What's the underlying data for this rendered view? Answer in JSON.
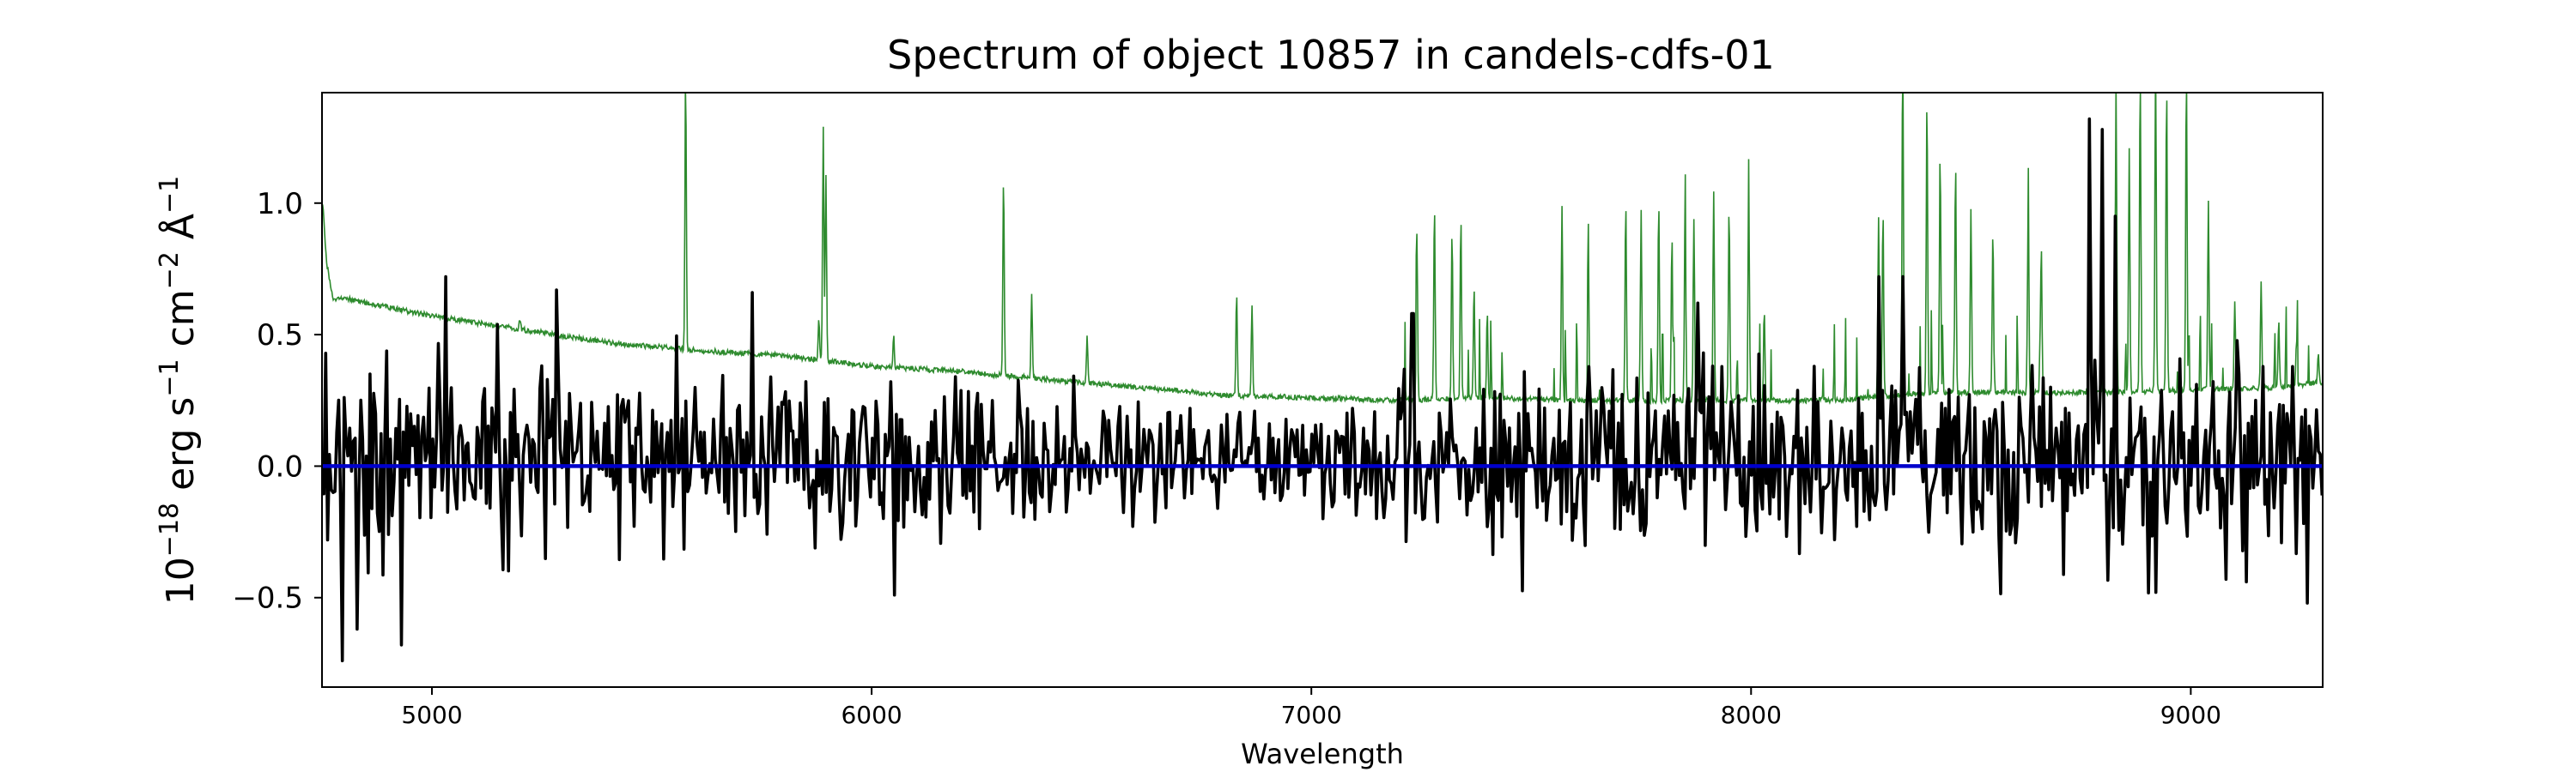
{
  "chart_data": {
    "type": "line",
    "title": "Spectrum of object 10857 in candels-cdfs-01",
    "xlabel": "Wavelength",
    "ylabel": "10−18 erg s−1 cm−2 Å−1",
    "ylabel_parts": {
      "base": "10",
      "e1": "−18",
      "t1": " erg s",
      "e2": "−1",
      "t2": " cm",
      "e3": "−2",
      "t3": " Å",
      "e4": "−1"
    },
    "xlim": [
      4750,
      9300
    ],
    "ylim": [
      -0.84,
      1.42
    ],
    "x_ticks": [
      5000,
      6000,
      7000,
      8000,
      9000
    ],
    "x_tick_labels": [
      "5000",
      "6000",
      "7000",
      "8000",
      "9000"
    ],
    "y_ticks": [
      -0.5,
      0.0,
      0.5,
      1.0
    ],
    "y_tick_labels": [
      "−0.5",
      "0.0",
      "0.5",
      "1.0"
    ],
    "grid": false,
    "series": [
      {
        "role": "sky/error spectrum",
        "color": "#2e8b2e",
        "style": "thin",
        "continuum": [
          [
            4752,
            1.0
          ],
          [
            4760,
            0.78
          ],
          [
            4775,
            0.63
          ],
          [
            4800,
            0.64
          ],
          [
            4850,
            0.62
          ],
          [
            5000,
            0.57
          ],
          [
            5200,
            0.52
          ],
          [
            5400,
            0.47
          ],
          [
            5600,
            0.44
          ],
          [
            5800,
            0.42
          ],
          [
            6000,
            0.38
          ],
          [
            6200,
            0.36
          ],
          [
            6400,
            0.33
          ],
          [
            6600,
            0.3
          ],
          [
            6800,
            0.27
          ],
          [
            7000,
            0.26
          ],
          [
            7200,
            0.25
          ],
          [
            7400,
            0.26
          ],
          [
            7600,
            0.25
          ],
          [
            7800,
            0.25
          ],
          [
            8000,
            0.25
          ],
          [
            8200,
            0.25
          ],
          [
            8400,
            0.28
          ],
          [
            8600,
            0.28
          ],
          [
            8800,
            0.28
          ],
          [
            9000,
            0.29
          ],
          [
            9200,
            0.3
          ],
          [
            9300,
            0.32
          ]
        ],
        "emission_lines": [
          [
            5577,
            1.5
          ],
          [
            5890,
            1.28
          ],
          [
            5896,
            1.1
          ],
          [
            6300,
            1.1
          ],
          [
            6364,
            0.66
          ],
          [
            5200,
            0.56
          ],
          [
            5880,
            0.56
          ],
          [
            6050,
            0.5
          ],
          [
            6490,
            0.5
          ],
          [
            6830,
            0.66
          ],
          [
            6865,
            0.62
          ],
          [
            7240,
            0.88
          ],
          [
            7280,
            1.0
          ],
          [
            7320,
            0.9
          ],
          [
            7340,
            0.95
          ],
          [
            7370,
            0.68
          ],
          [
            7400,
            0.58
          ],
          [
            7570,
            0.98
          ],
          [
            7630,
            0.75
          ],
          [
            7715,
            1.0
          ],
          [
            7750,
            0.98
          ],
          [
            7790,
            1.0
          ],
          [
            7820,
            0.88
          ],
          [
            7850,
            1.02
          ],
          [
            7870,
            0.93
          ],
          [
            7915,
            1.04
          ],
          [
            7950,
            0.99
          ],
          [
            7995,
            0.92
          ],
          [
            8030,
            0.6
          ],
          [
            8290,
            0.95
          ],
          [
            8300,
            0.98
          ],
          [
            8345,
            1.58
          ],
          [
            8400,
            1.4
          ],
          [
            8430,
            1.2
          ],
          [
            8465,
            1.15
          ],
          [
            8500,
            0.98
          ],
          [
            8550,
            0.9
          ],
          [
            8630,
            0.9
          ],
          [
            8660,
            0.85
          ],
          [
            8770,
            1.2
          ],
          [
            8830,
            1.45
          ],
          [
            8860,
            1.2
          ],
          [
            8885,
            1.5
          ],
          [
            8920,
            1.55
          ],
          [
            8945,
            1.45
          ],
          [
            8990,
            1.5
          ],
          [
            9040,
            1.0
          ],
          [
            9100,
            0.62
          ],
          [
            9160,
            0.7
          ],
          [
            9200,
            0.55
          ],
          [
            9240,
            0.45
          ],
          [
            9290,
            0.44
          ]
        ]
      },
      {
        "role": "object flux",
        "color": "#000000",
        "style": "thick",
        "noise_points": [
          [
            4750,
            0.25
          ],
          [
            5000,
            0.22
          ],
          [
            5300,
            0.2
          ],
          [
            5600,
            0.18
          ],
          [
            6000,
            0.17
          ],
          [
            6500,
            0.14
          ],
          [
            7000,
            0.13
          ],
          [
            7500,
            0.19
          ],
          [
            8000,
            0.2
          ],
          [
            8500,
            0.22
          ],
          [
            9000,
            0.22
          ],
          [
            9300,
            0.22
          ]
        ],
        "features": [
          [
            4795,
            -0.74
          ],
          [
            4830,
            -0.62
          ],
          [
            4930,
            -0.68
          ],
          [
            5030,
            0.72
          ],
          [
            5285,
            0.67
          ],
          [
            5730,
            0.66
          ],
          [
            6050,
            -0.49
          ],
          [
            7230,
            0.58
          ],
          [
            7880,
            0.62
          ],
          [
            8290,
            0.72
          ],
          [
            8345,
            0.72
          ],
          [
            8770,
            1.32
          ],
          [
            8800,
            1.28
          ],
          [
            8830,
            0.95
          ],
          [
            8920,
            -0.48
          ],
          [
            9080,
            -0.43
          ],
          [
            9110,
            0.35
          ]
        ]
      },
      {
        "role": "zero line",
        "color": "#0000cc",
        "style": "medium",
        "constant": 0.0
      }
    ]
  }
}
